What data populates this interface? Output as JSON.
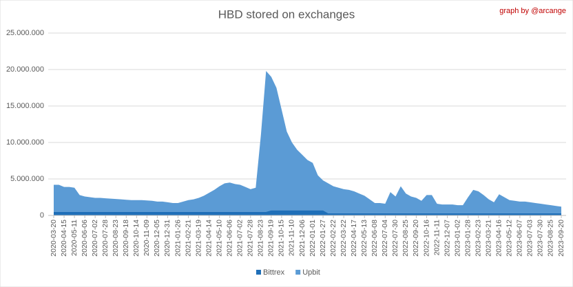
{
  "chart_data": {
    "type": "stacked-area",
    "title": "HBD stored on exchanges",
    "annotation": "graph by @arcange",
    "categories": [
      "2020-03-20",
      null,
      "2020-04-15",
      null,
      "2020-05-11",
      null,
      "2020-06-06",
      null,
      "2020-07-02",
      null,
      "2020-07-28",
      null,
      "2020-08-23",
      null,
      "2020-09-18",
      null,
      "2020-10-14",
      null,
      "2020-11-09",
      null,
      "2020-12-05",
      null,
      "2020-12-31",
      null,
      "2021-01-26",
      null,
      "2021-02-21",
      null,
      "2021-03-19",
      null,
      "2021-04-14",
      null,
      "2021-05-10",
      null,
      "2021-06-06",
      null,
      "2021-07-02",
      null,
      "2021-07-28",
      null,
      "2021-08-23",
      null,
      "2021-09-19",
      null,
      "2021-10-15",
      null,
      "2021-11-10",
      null,
      "2021-12-06",
      null,
      "2022-01-01",
      null,
      "2022-01-27",
      null,
      "2022-02-22",
      null,
      "2022-03-22",
      null,
      "2022-04-17",
      null,
      "2022-05-13",
      null,
      "2022-06-08",
      null,
      "2022-07-04",
      null,
      "2022-07-30",
      null,
      "2022-08-25",
      null,
      "2022-09-20",
      null,
      "2022-10-16",
      null,
      "2022-11-11",
      null,
      "2022-12-07",
      null,
      "2023-01-02",
      null,
      "2023-01-28",
      null,
      "2023-02-23",
      null,
      "2023-03-21",
      null,
      "2023-04-16",
      null,
      "2023-05-12",
      null,
      "2023-06-07",
      null,
      "2023-07-03",
      null,
      "2023-07-30",
      null,
      "2023-08-25",
      null,
      "2023-09-20"
    ],
    "series": [
      {
        "name": "Bittrex",
        "color": "#1f6fb8",
        "values": [
          500000,
          500000,
          500000,
          500000,
          500000,
          500000,
          500000,
          500000,
          500000,
          500000,
          500000,
          500000,
          500000,
          500000,
          500000,
          500000,
          500000,
          500000,
          500000,
          500000,
          500000,
          500000,
          500000,
          500000,
          500000,
          500000,
          500000,
          500000,
          500000,
          500000,
          500000,
          500000,
          500000,
          500000,
          500000,
          500000,
          500000,
          500000,
          500000,
          500000,
          500000,
          500000,
          700000,
          700000,
          700000,
          700000,
          700000,
          700000,
          700000,
          700000,
          700000,
          700000,
          700000,
          300000,
          300000,
          300000,
          300000,
          300000,
          300000,
          300000,
          300000,
          300000,
          300000,
          300000,
          300000,
          300000,
          300000,
          300000,
          300000,
          300000,
          300000,
          300000,
          300000,
          300000,
          300000,
          300000,
          300000,
          300000,
          300000,
          300000,
          300000,
          300000,
          300000,
          300000,
          300000,
          300000,
          300000,
          300000,
          300000,
          300000,
          300000,
          300000,
          300000,
          300000,
          300000,
          300000,
          300000,
          300000,
          300000
        ]
      },
      {
        "name": "Upbit",
        "color": "#5b9bd5",
        "values": [
          3700000,
          3700000,
          3400000,
          3400000,
          3300000,
          2300000,
          2100000,
          2000000,
          1900000,
          1900000,
          1850000,
          1800000,
          1750000,
          1700000,
          1650000,
          1600000,
          1600000,
          1600000,
          1550000,
          1500000,
          1400000,
          1400000,
          1300000,
          1200000,
          1200000,
          1400000,
          1600000,
          1700000,
          1900000,
          2200000,
          2600000,
          3000000,
          3500000,
          3900000,
          4000000,
          3800000,
          3700000,
          3400000,
          3100000,
          3300000,
          10500000,
          19300000,
          18300000,
          16800000,
          13800000,
          10800000,
          9300000,
          8300000,
          7600000,
          6900000,
          6500000,
          4800000,
          4100000,
          4100000,
          3700000,
          3500000,
          3300000,
          3200000,
          3000000,
          2700000,
          2400000,
          1900000,
          1400000,
          1400000,
          1300000,
          2900000,
          2300000,
          3700000,
          2700000,
          2300000,
          2100000,
          1700000,
          2500000,
          2500000,
          1300000,
          1200000,
          1200000,
          1200000,
          1100000,
          1100000,
          2200000,
          3200000,
          3000000,
          2500000,
          1900000,
          1500000,
          2600000,
          2200000,
          1800000,
          1700000,
          1600000,
          1600000,
          1500000,
          1400000,
          1300000,
          1200000,
          1100000,
          1000000,
          900000
        ]
      }
    ],
    "ylim": [
      0,
      25000000
    ],
    "yticks": [
      0,
      {
        "value": 5000000,
        "label": "5.000.000"
      },
      {
        "value": 10000000,
        "label": "10.000.000"
      },
      {
        "value": 15000000,
        "label": "15.000.000"
      },
      {
        "value": 20000000,
        "label": "20.000.000"
      },
      {
        "value": 25000000,
        "label": "25.000.000"
      }
    ],
    "grid": true,
    "legend": "bottom"
  }
}
